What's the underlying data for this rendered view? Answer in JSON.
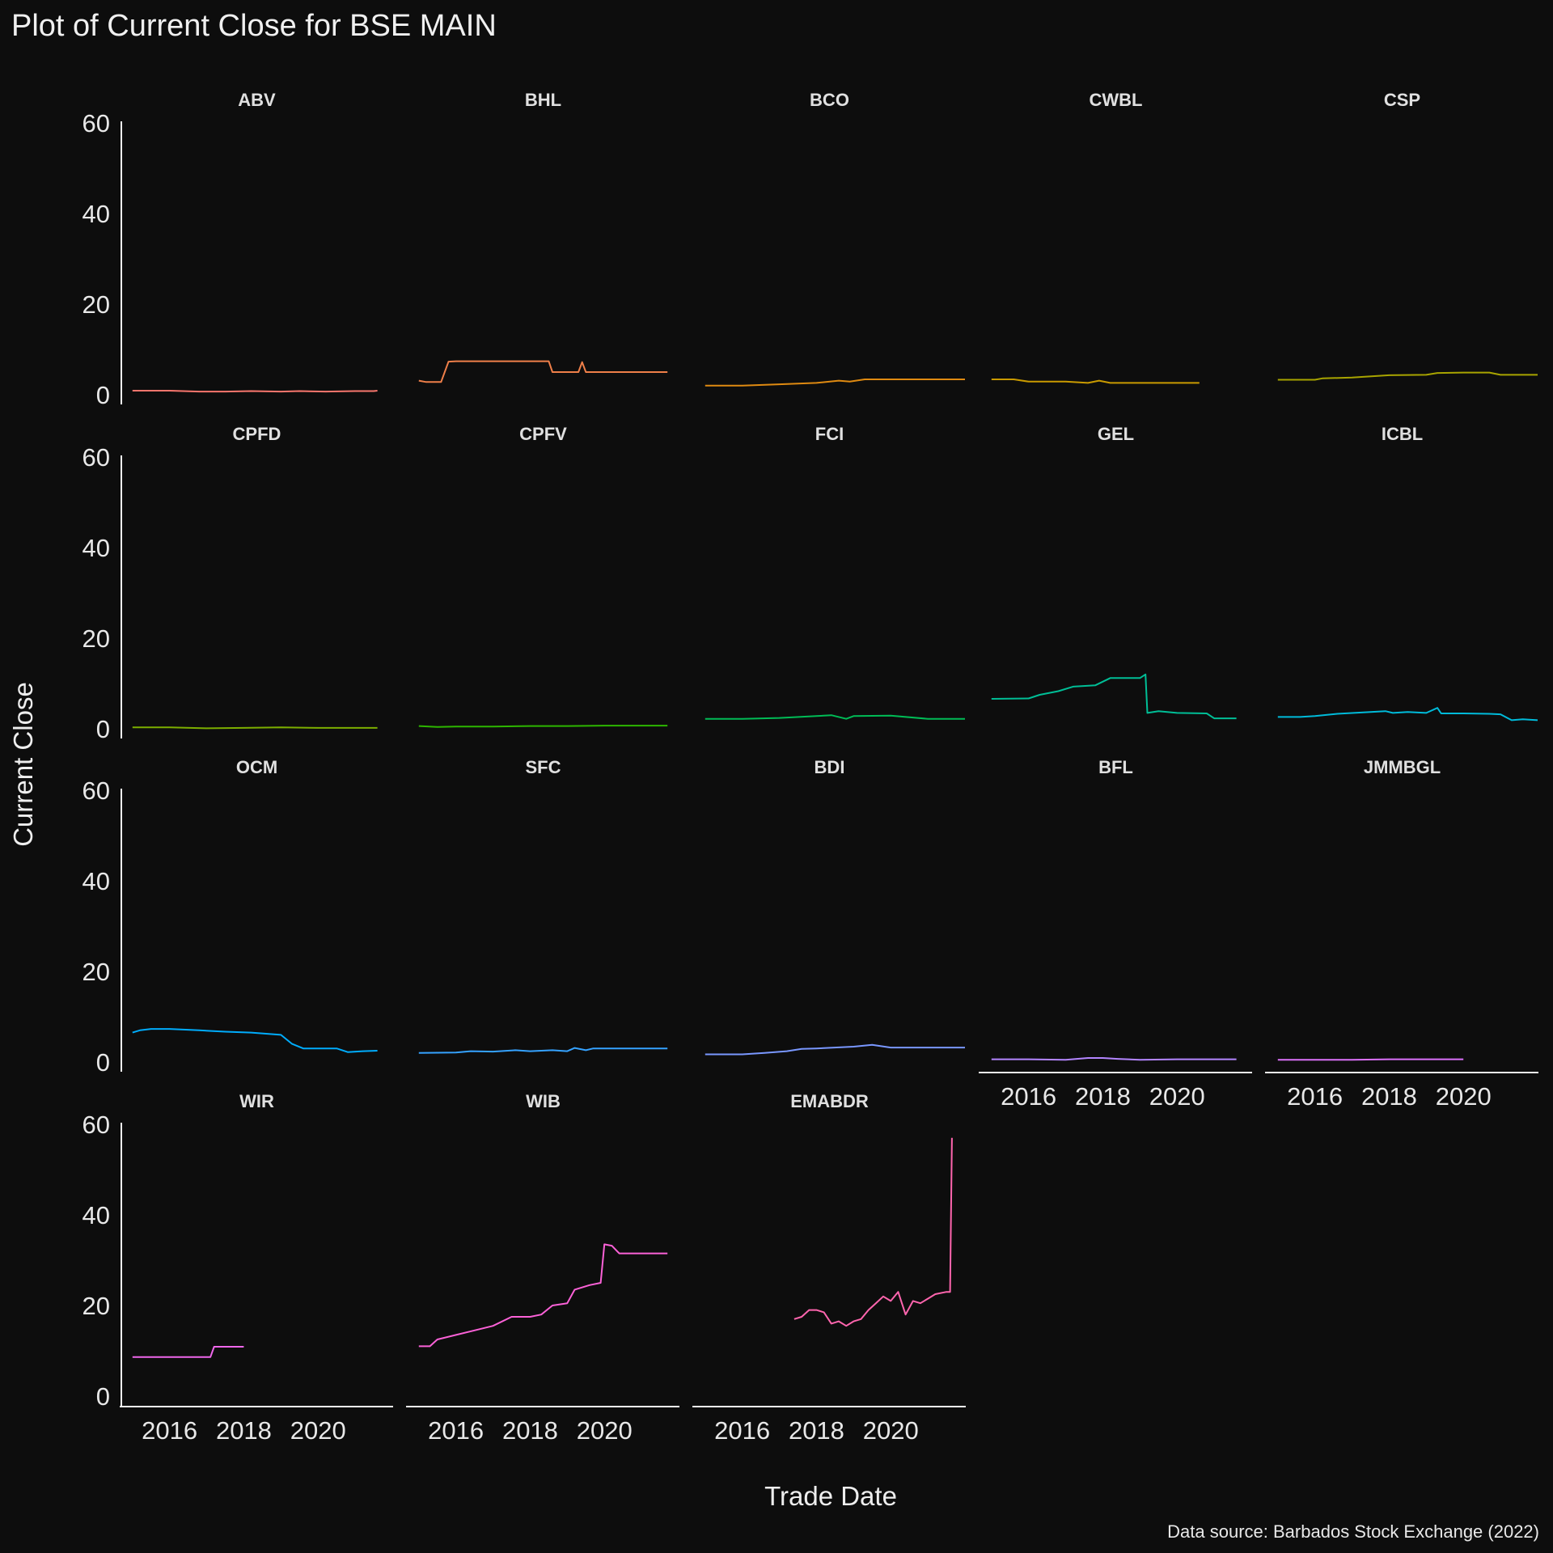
{
  "chart_data": {
    "type": "line",
    "title": "Plot of Current Close for BSE MAIN",
    "xlabel": "Trade Date",
    "ylabel": "Current Close",
    "caption": "Data source: Barbados Stock Exchange (2022)",
    "ylim": [
      0,
      60
    ],
    "yticks": [
      0,
      20,
      40,
      60
    ],
    "xlim": [
      2014.7,
      2022.0
    ],
    "xticks": [
      2016,
      2018,
      2020
    ],
    "grid": false,
    "legend": "none",
    "facet_cols": 5,
    "panels": [
      {
        "name": "ABV",
        "color": "#F8766D",
        "x": [
          2015.0,
          2016.0,
          2016.8,
          2017.5,
          2018.2,
          2019.0,
          2019.5,
          2020.2,
          2021.0,
          2021.5,
          2021.6
        ],
        "y": [
          0.9,
          0.9,
          0.7,
          0.7,
          0.8,
          0.7,
          0.8,
          0.7,
          0.8,
          0.8,
          0.9
        ]
      },
      {
        "name": "BHL",
        "color": "#EF7F49",
        "x": [
          2015.0,
          2015.2,
          2015.6,
          2015.8,
          2016.0,
          2017.0,
          2018.0,
          2018.5,
          2018.6,
          2018.8,
          2019.3,
          2019.4,
          2019.5,
          2019.7,
          2020.5,
          2021.5,
          2021.7
        ],
        "y": [
          3.1,
          2.8,
          2.8,
          7.3,
          7.4,
          7.4,
          7.4,
          7.4,
          5.0,
          5.0,
          5.0,
          7.2,
          5.0,
          5.0,
          5.0,
          5.0,
          5.0
        ]
      },
      {
        "name": "BCO",
        "color": "#DF8A11",
        "x": [
          2015.0,
          2016.0,
          2017.0,
          2018.0,
          2018.6,
          2018.9,
          2019.3,
          2020.0,
          2021.0,
          2022.0
        ],
        "y": [
          2.0,
          2.0,
          2.3,
          2.6,
          3.1,
          2.9,
          3.4,
          3.4,
          3.4,
          3.4
        ]
      },
      {
        "name": "CWBL",
        "color": "#C99A00",
        "x": [
          2015.0,
          2015.6,
          2016.0,
          2017.0,
          2017.6,
          2017.9,
          2018.2,
          2019.0,
          2020.0,
          2020.6
        ],
        "y": [
          3.4,
          3.4,
          2.9,
          2.9,
          2.6,
          3.1,
          2.6,
          2.6,
          2.6,
          2.6
        ]
      },
      {
        "name": "CSP",
        "color": "#A8A400",
        "x": [
          2015.0,
          2016.0,
          2016.2,
          2017.0,
          2018.0,
          2019.0,
          2019.3,
          2020.0,
          2020.7,
          2021.0,
          2022.0
        ],
        "y": [
          3.3,
          3.3,
          3.6,
          3.8,
          4.3,
          4.4,
          4.8,
          4.9,
          4.9,
          4.4,
          4.4
        ]
      },
      {
        "name": "CPFD",
        "color": "#7CAE00",
        "x": [
          2015.0,
          2016.0,
          2017.0,
          2018.0,
          2019.0,
          2020.0,
          2021.0,
          2021.6
        ],
        "y": [
          0.3,
          0.3,
          0.1,
          0.2,
          0.3,
          0.2,
          0.2,
          0.2
        ]
      },
      {
        "name": "CPFV",
        "color": "#2DB600",
        "x": [
          2015.0,
          2015.5,
          2016.0,
          2017.0,
          2018.0,
          2019.0,
          2020.0,
          2021.0,
          2021.7
        ],
        "y": [
          0.6,
          0.4,
          0.5,
          0.5,
          0.6,
          0.6,
          0.7,
          0.7,
          0.7
        ]
      },
      {
        "name": "FCI",
        "color": "#00BC56",
        "x": [
          2015.0,
          2016.0,
          2017.0,
          2018.0,
          2018.4,
          2018.8,
          2019.0,
          2020.0,
          2021.0,
          2022.0
        ],
        "y": [
          2.2,
          2.2,
          2.4,
          2.8,
          3.0,
          2.2,
          2.8,
          2.9,
          2.2,
          2.2
        ]
      },
      {
        "name": "GEL",
        "color": "#00BE96",
        "x": [
          2015.0,
          2016.0,
          2016.3,
          2016.8,
          2017.2,
          2017.8,
          2018.2,
          2018.5,
          2019.0,
          2019.15,
          2019.2,
          2019.5,
          2020.0,
          2020.8,
          2021.0,
          2021.6
        ],
        "y": [
          6.6,
          6.7,
          7.5,
          8.3,
          9.3,
          9.6,
          11.2,
          11.2,
          11.2,
          12.0,
          3.5,
          3.9,
          3.5,
          3.4,
          2.3,
          2.3
        ]
      },
      {
        "name": "ICBL",
        "color": "#00BBDA",
        "x": [
          2015.0,
          2015.6,
          2016.0,
          2016.6,
          2017.3,
          2017.9,
          2018.1,
          2018.5,
          2019.0,
          2019.3,
          2019.4,
          2019.6,
          2020.0,
          2020.7,
          2021.0,
          2021.3,
          2021.6,
          2022.0
        ],
        "y": [
          2.6,
          2.6,
          2.8,
          3.3,
          3.6,
          3.9,
          3.5,
          3.7,
          3.5,
          4.6,
          3.4,
          3.4,
          3.4,
          3.3,
          3.2,
          1.9,
          2.1,
          1.9
        ]
      },
      {
        "name": "OCM",
        "color": "#00ACFC",
        "x": [
          2015.0,
          2015.2,
          2015.5,
          2016.0,
          2016.8,
          2017.5,
          2018.2,
          2019.0,
          2019.3,
          2019.6,
          2020.0,
          2020.5,
          2020.8,
          2021.2,
          2021.6
        ],
        "y": [
          6.5,
          7.0,
          7.3,
          7.3,
          7.0,
          6.7,
          6.5,
          6.0,
          4.0,
          3.0,
          3.0,
          3.0,
          2.2,
          2.4,
          2.5
        ]
      },
      {
        "name": "SFC",
        "color": "#35A2FF",
        "x": [
          2015.0,
          2016.0,
          2016.4,
          2017.0,
          2017.6,
          2018.0,
          2018.6,
          2019.0,
          2019.2,
          2019.5,
          2019.7,
          2020.0,
          2021.0,
          2021.7
        ],
        "y": [
          2.0,
          2.1,
          2.4,
          2.3,
          2.6,
          2.4,
          2.6,
          2.4,
          3.1,
          2.6,
          3.0,
          3.0,
          3.0,
          3.0
        ]
      },
      {
        "name": "BDI",
        "color": "#7997FF",
        "x": [
          2015.0,
          2016.0,
          2016.6,
          2017.2,
          2017.6,
          2018.0,
          2019.0,
          2019.5,
          2020.0,
          2021.0,
          2022.0
        ],
        "y": [
          1.7,
          1.7,
          2.0,
          2.4,
          2.9,
          3.0,
          3.4,
          3.8,
          3.2,
          3.2,
          3.2
        ]
      },
      {
        "name": "BFL",
        "color": "#B385FF",
        "x": [
          2015.0,
          2016.0,
          2017.0,
          2017.6,
          2018.0,
          2018.4,
          2019.0,
          2020.0,
          2021.0,
          2021.6
        ],
        "y": [
          0.6,
          0.6,
          0.5,
          0.9,
          0.9,
          0.7,
          0.5,
          0.6,
          0.6,
          0.6
        ]
      },
      {
        "name": "JMMBGL",
        "color": "#DC71FA",
        "x": [
          2015.0,
          2016.0,
          2017.0,
          2018.0,
          2019.0,
          2020.0
        ],
        "y": [
          0.5,
          0.5,
          0.5,
          0.6,
          0.6,
          0.6
        ]
      },
      {
        "name": "WIR",
        "color": "#EF67EB",
        "x": [
          2015.0,
          2016.0,
          2016.8,
          2017.1,
          2017.2,
          2018.0
        ],
        "y": [
          8.6,
          8.6,
          8.6,
          8.6,
          10.9,
          10.9
        ]
      },
      {
        "name": "WIB",
        "color": "#FB61D7",
        "x": [
          2015.0,
          2015.3,
          2015.5,
          2016.0,
          2016.5,
          2017.0,
          2017.5,
          2018.0,
          2018.3,
          2018.6,
          2019.0,
          2019.2,
          2019.6,
          2019.9,
          2020.0,
          2020.2,
          2020.4,
          2021.0,
          2021.7
        ],
        "y": [
          11.0,
          11.0,
          12.5,
          13.5,
          14.5,
          15.5,
          17.5,
          17.5,
          18.0,
          20.0,
          20.5,
          23.5,
          24.5,
          25.0,
          33.5,
          33.2,
          31.5,
          31.5,
          31.5
        ]
      },
      {
        "name": "EMABDR",
        "color": "#FF65AE",
        "x": [
          2017.4,
          2017.6,
          2017.8,
          2018.0,
          2018.2,
          2018.4,
          2018.6,
          2018.8,
          2019.0,
          2019.2,
          2019.4,
          2019.6,
          2019.8,
          2020.0,
          2020.2,
          2020.4,
          2020.6,
          2020.8,
          2021.0,
          2021.2,
          2021.5,
          2021.6,
          2021.65
        ],
        "y": [
          17.0,
          17.5,
          19.0,
          19.0,
          18.5,
          16.0,
          16.5,
          15.5,
          16.5,
          17.0,
          19.0,
          20.5,
          22.0,
          21.0,
          23.0,
          18.0,
          21.0,
          20.5,
          21.5,
          22.5,
          23.0,
          23.0,
          57.0
        ]
      }
    ]
  }
}
